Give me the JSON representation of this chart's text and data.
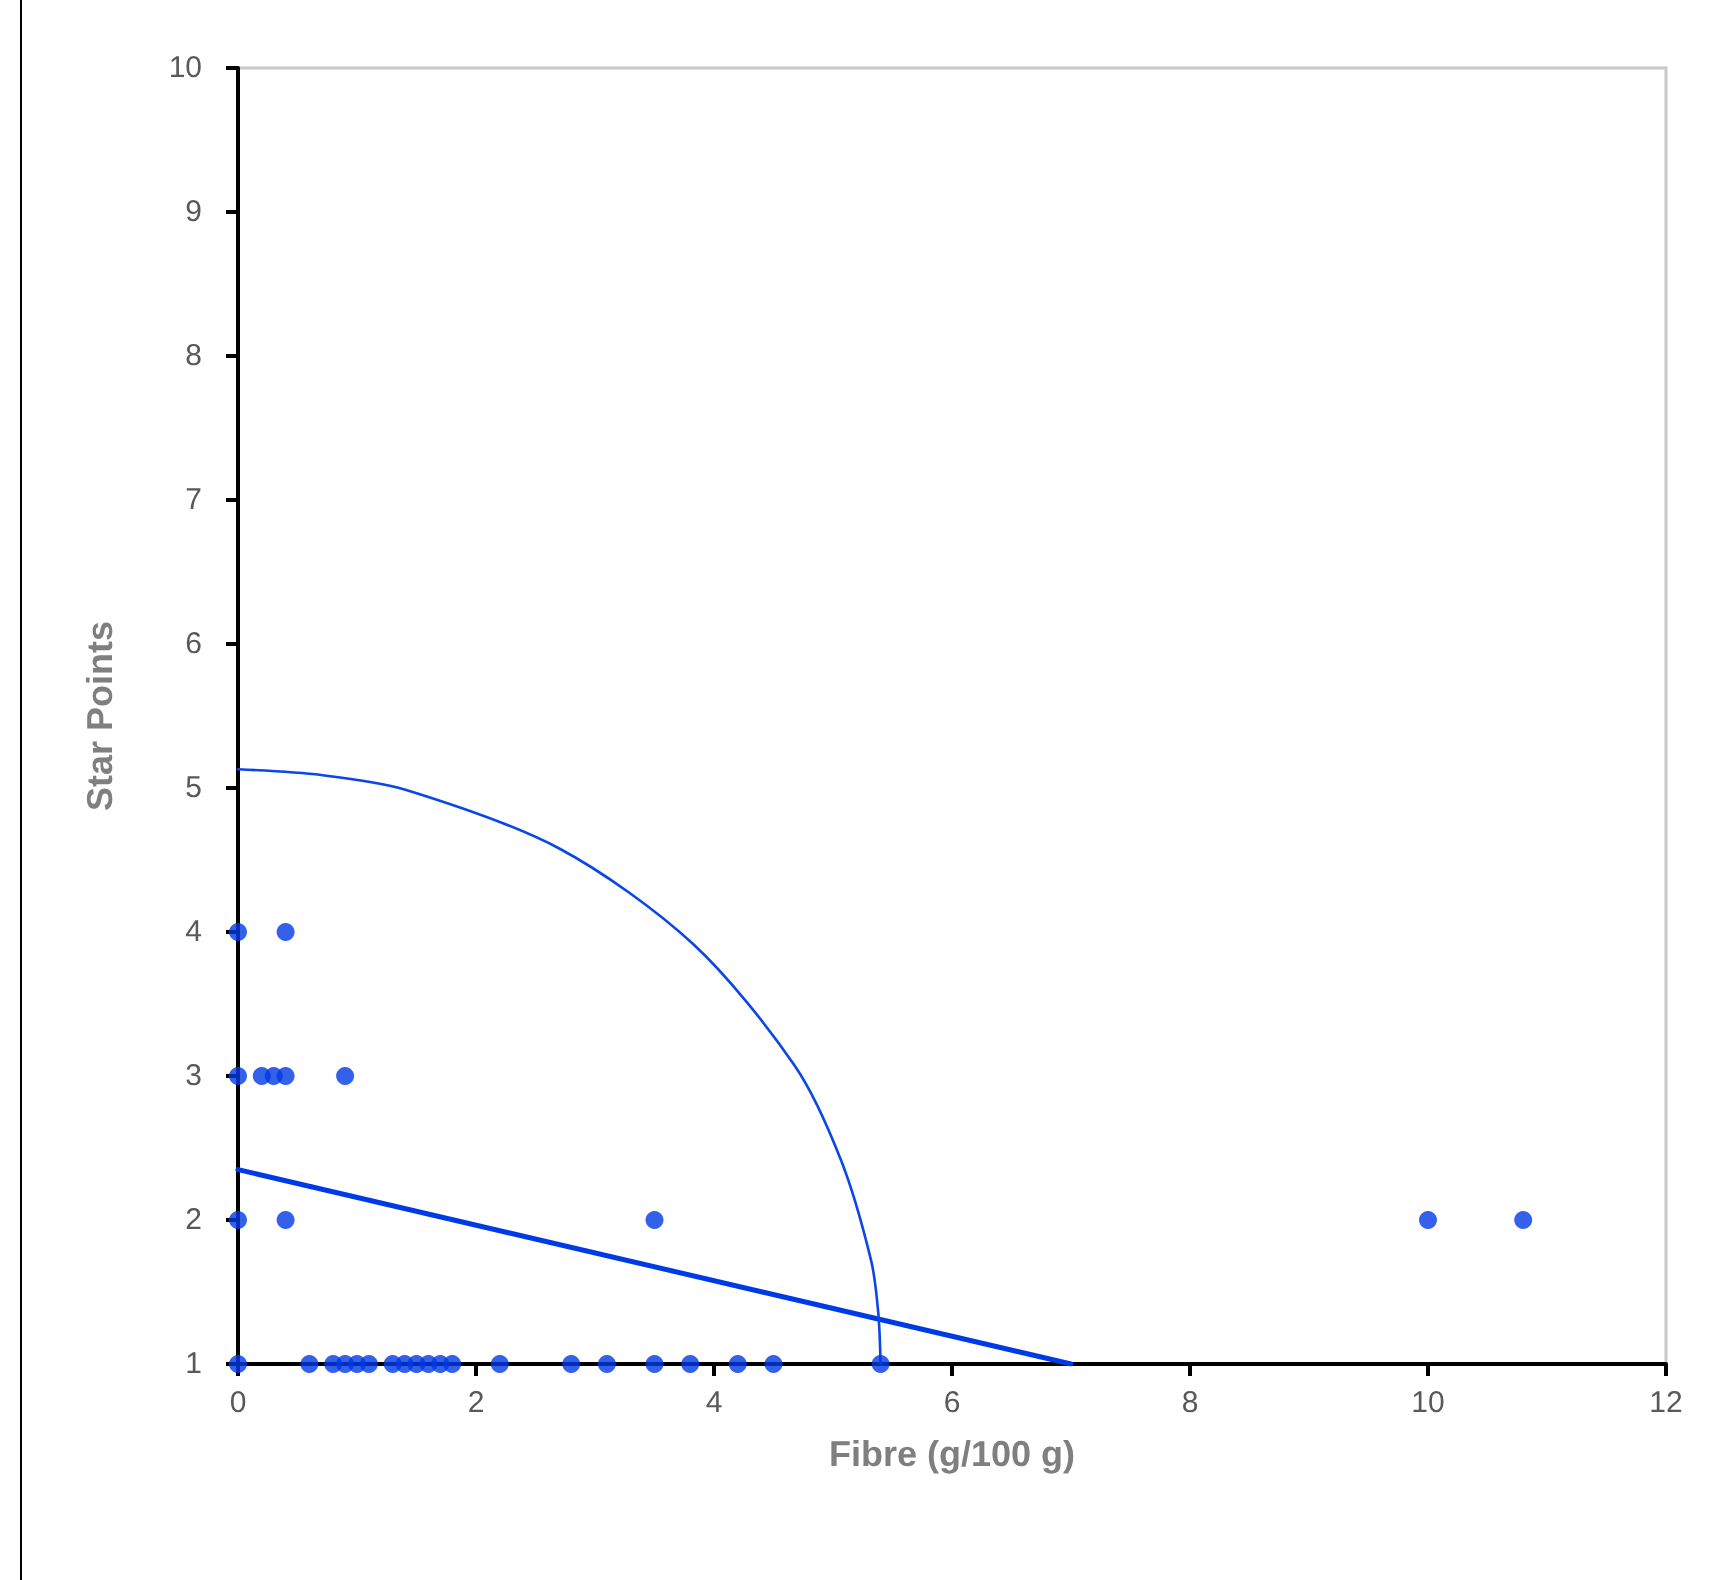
{
  "chart_data": {
    "type": "scatter",
    "xlabel": "Fibre (g/100 g)",
    "ylabel": "Star Points",
    "xlim": [
      0,
      12
    ],
    "xticks": [
      0,
      2,
      4,
      6,
      8,
      10,
      12
    ],
    "ylim": [
      1,
      10
    ],
    "yticks": [
      1,
      2,
      3,
      4,
      5,
      6,
      7,
      8,
      9,
      10
    ],
    "grid": false,
    "marker": "circle",
    "series": [
      {
        "color": "#0039e6",
        "x": [
          0,
          0.6,
          0.8,
          0.9,
          1.0,
          1.1,
          1.3,
          1.4,
          1.5,
          1.6,
          1.7,
          1.8,
          2.2,
          2.8,
          3.1,
          3.5,
          3.8,
          4.2,
          4.5,
          5.4,
          0,
          0.4,
          3.5,
          10,
          10.8,
          0,
          0.2,
          0.3,
          0.4,
          0.9,
          0,
          0.4
        ],
        "values": [
          1,
          1,
          1,
          1,
          1,
          1,
          1,
          1,
          1,
          1,
          1,
          1,
          1,
          1,
          1,
          1,
          1,
          1,
          1,
          1,
          2,
          2,
          2,
          2,
          2,
          3,
          3,
          3,
          3,
          3,
          4,
          4
        ]
      },
      {
        "type": "line",
        "color": "#0039e6",
        "marker": "none",
        "x": [
          0,
          7
        ],
        "values": [
          2.35,
          1
        ]
      },
      {
        "type": "line",
        "color": "#0a46e8",
        "marker": "none",
        "x": [
          0,
          0.7,
          1.4,
          2.7,
          3.82,
          4.68,
          5.07,
          5.32,
          5.38,
          5.4
        ],
        "values": [
          5.13,
          5.09,
          4.99,
          4.58,
          3.92,
          3.07,
          2.41,
          1.72,
          1.36,
          1
        ]
      }
    ]
  }
}
